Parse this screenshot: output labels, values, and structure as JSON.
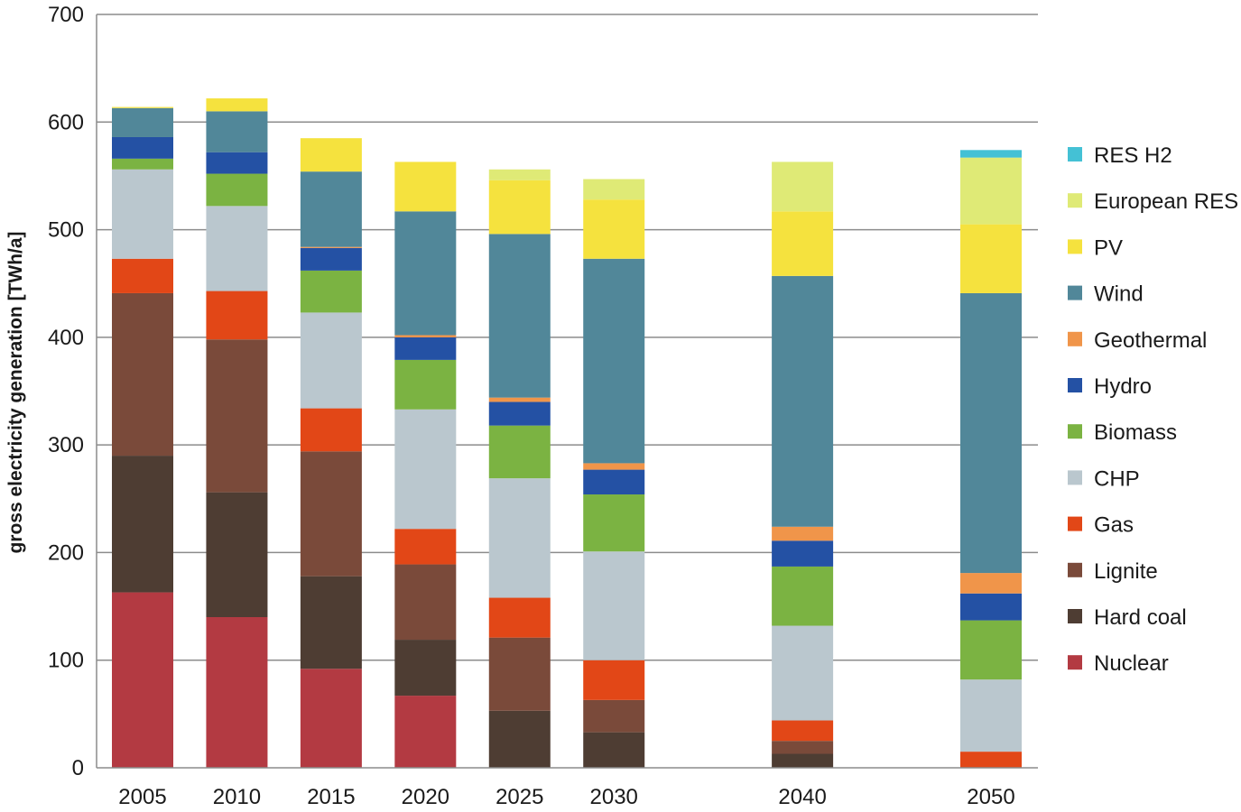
{
  "chart_data": {
    "type": "bar",
    "stacked": true,
    "title": "",
    "xlabel": "",
    "ylabel": "gross electricity generation [TWh/a]",
    "ylim": [
      0,
      700
    ],
    "yticks": [
      0,
      100,
      200,
      300,
      400,
      500,
      600,
      700
    ],
    "grid": true,
    "legend_position": "right",
    "categories": [
      "2005",
      "2010",
      "2015",
      "2020",
      "2025",
      "2030",
      "2040",
      "2050"
    ],
    "category_x_values": [
      2005,
      2010,
      2015,
      2020,
      2025,
      2030,
      2040,
      2050
    ],
    "series": [
      {
        "name": "Nuclear",
        "color": "#b33a42",
        "values": [
          163,
          140,
          92,
          67,
          0,
          0,
          0,
          0
        ]
      },
      {
        "name": "Hard coal",
        "color": "#4e3d33",
        "values": [
          127,
          116,
          86,
          52,
          53,
          33,
          13,
          0
        ]
      },
      {
        "name": "Lignite",
        "color": "#7a4a3a",
        "values": [
          151,
          142,
          116,
          70,
          68,
          30,
          12,
          0
        ]
      },
      {
        "name": "Gas",
        "color": "#e24717",
        "values": [
          32,
          45,
          40,
          33,
          37,
          37,
          19,
          15
        ]
      },
      {
        "name": "CHP",
        "color": "#bac7ce",
        "values": [
          83,
          79,
          89,
          111,
          111,
          101,
          88,
          67
        ]
      },
      {
        "name": "Biomass",
        "color": "#7bb342",
        "values": [
          10,
          30,
          39,
          46,
          49,
          53,
          55,
          55
        ]
      },
      {
        "name": "Hydro",
        "color": "#2451a4",
        "values": [
          20,
          20,
          21,
          21,
          22,
          23,
          24,
          25
        ]
      },
      {
        "name": "Geothermal",
        "color": "#f0954a",
        "values": [
          0,
          0,
          1,
          2,
          4,
          6,
          13,
          19
        ]
      },
      {
        "name": "Wind",
        "color": "#518799",
        "values": [
          27,
          38,
          70,
          115,
          152,
          190,
          233,
          260
        ]
      },
      {
        "name": "PV",
        "color": "#f5e23e",
        "values": [
          1,
          12,
          31,
          46,
          50,
          55,
          60,
          64
        ]
      },
      {
        "name": "European RES",
        "color": "#dfea76",
        "values": [
          0,
          0,
          0,
          0,
          10,
          19,
          46,
          62
        ]
      },
      {
        "name": "RES H2",
        "color": "#44c1d5",
        "values": [
          0,
          0,
          0,
          0,
          0,
          0,
          0,
          7
        ]
      }
    ]
  }
}
